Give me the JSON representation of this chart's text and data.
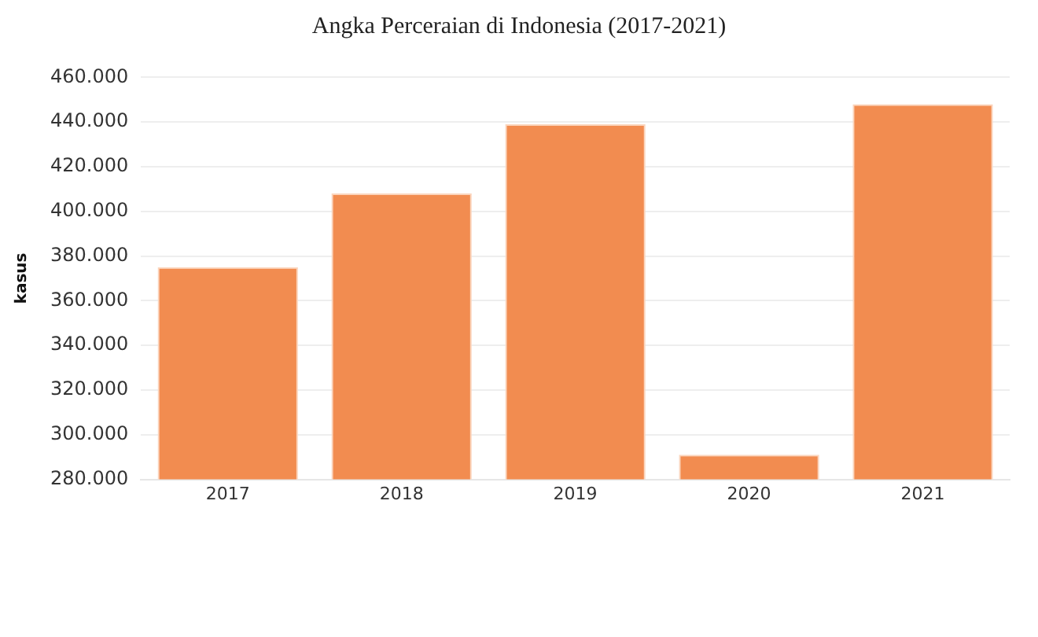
{
  "chart_data": {
    "type": "bar",
    "title": "Angka Perceraian di Indonesia (2017-2021)",
    "ylabel": "kasus",
    "categories": [
      "2017",
      "2018",
      "2019",
      "2020",
      "2021"
    ],
    "values": [
      375000,
      408000,
      439000,
      291000,
      448000
    ],
    "color": "#f28c50",
    "ylim": [
      280000,
      460000
    ],
    "yticks": [
      {
        "value": 280000,
        "label": "280.000"
      },
      {
        "value": 300000,
        "label": "300.000"
      },
      {
        "value": 320000,
        "label": "320.000"
      },
      {
        "value": 340000,
        "label": "340.000"
      },
      {
        "value": 360000,
        "label": "360.000"
      },
      {
        "value": 380000,
        "label": "380.000"
      },
      {
        "value": 400000,
        "label": "400.000"
      },
      {
        "value": 420000,
        "label": "420.000"
      },
      {
        "value": 440000,
        "label": "440.000"
      },
      {
        "value": 460000,
        "label": "460.000"
      }
    ],
    "grid": "y"
  }
}
